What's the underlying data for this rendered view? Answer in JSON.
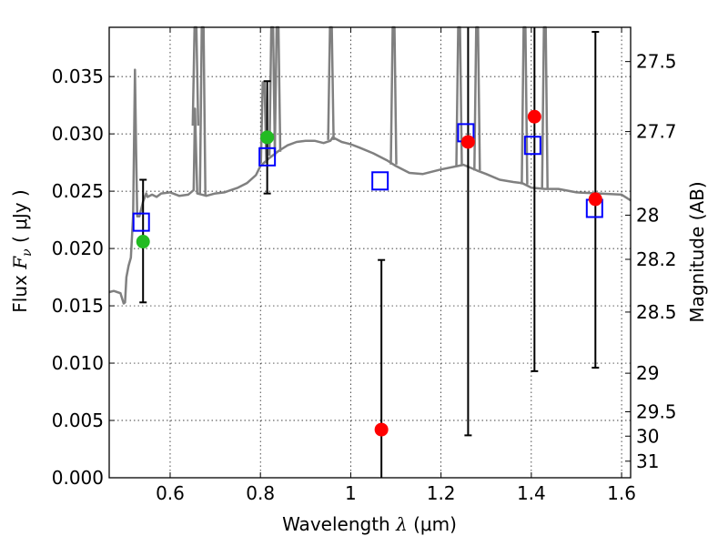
{
  "chart_data": {
    "type": "scatter",
    "xlabel": {
      "prefix": "Wavelength  ",
      "symbol": "λ",
      "unit": " (μm)"
    },
    "ylabel": {
      "prefix": "Flux  ",
      "symbol": "F",
      "subscript": "ν",
      "unit": "  ( μJy )"
    },
    "ylabel_right": "Magnitude (AB)",
    "xlim": [
      0.465,
      1.62
    ],
    "ylim": [
      0.0,
      0.0393
    ],
    "grid": true,
    "x_ticks": [
      {
        "value": 0.6,
        "label": "0.6"
      },
      {
        "value": 0.8,
        "label": "0.8"
      },
      {
        "value": 1.0,
        "label": "1"
      },
      {
        "value": 1.2,
        "label": "1.2"
      },
      {
        "value": 1.4,
        "label": "1.4"
      },
      {
        "value": 1.6,
        "label": "1.6"
      }
    ],
    "y_ticks": [
      {
        "value": 0.0,
        "label": "0.000"
      },
      {
        "value": 0.005,
        "label": "0.005"
      },
      {
        "value": 0.01,
        "label": "0.010"
      },
      {
        "value": 0.015,
        "label": "0.015"
      },
      {
        "value": 0.02,
        "label": "0.020"
      },
      {
        "value": 0.025,
        "label": "0.025"
      },
      {
        "value": 0.03,
        "label": "0.030"
      },
      {
        "value": 0.035,
        "label": "0.035"
      }
    ],
    "right_ticks": [
      {
        "value": 27.5,
        "label": "27.5"
      },
      {
        "value": 27.7,
        "label": "27.7"
      },
      {
        "value": 28.0,
        "label": "28"
      },
      {
        "value": 28.2,
        "label": "28.2"
      },
      {
        "value": 28.5,
        "label": "28.5"
      },
      {
        "value": 29.0,
        "label": "29"
      },
      {
        "value": 29.5,
        "label": "29.5"
      },
      {
        "value": 30.0,
        "label": "30"
      },
      {
        "value": 31.0,
        "label": "31"
      }
    ],
    "model_spectrum": {
      "color": "#808080",
      "x": [
        0.465,
        0.475,
        0.49,
        0.497,
        0.5,
        0.503,
        0.508,
        0.513,
        0.518,
        0.522,
        0.5245,
        0.527,
        0.532,
        0.54,
        0.547,
        0.55,
        0.56,
        0.57,
        0.58,
        0.6,
        0.62,
        0.64,
        0.652,
        0.655,
        0.66,
        0.68,
        0.7,
        0.72,
        0.75,
        0.77,
        0.79,
        0.8,
        0.82,
        0.84,
        0.86,
        0.88,
        0.9,
        0.92,
        0.94,
        0.955,
        0.96,
        0.98,
        1.0,
        1.02,
        1.05,
        1.08,
        1.1,
        1.13,
        1.16,
        1.2,
        1.25,
        1.28,
        1.3,
        1.33,
        1.36,
        1.38,
        1.4,
        1.43,
        1.46,
        1.5,
        1.55,
        1.6,
        1.62
      ],
      "y": [
        0.0162,
        0.0163,
        0.0161,
        0.0152,
        0.0153,
        0.0175,
        0.0185,
        0.0192,
        0.0229,
        0.0356,
        0.029,
        0.0228,
        0.0228,
        0.0241,
        0.0248,
        0.0245,
        0.0247,
        0.0245,
        0.0248,
        0.0249,
        0.0246,
        0.0247,
        0.0251,
        0.0322,
        0.0248,
        0.0246,
        0.0248,
        0.0249,
        0.0253,
        0.0257,
        0.0264,
        0.0272,
        0.0279,
        0.0285,
        0.029,
        0.0293,
        0.0294,
        0.0294,
        0.0292,
        0.0294,
        0.0297,
        0.0293,
        0.0291,
        0.0288,
        0.0283,
        0.0277,
        0.0272,
        0.0266,
        0.0265,
        0.0269,
        0.0273,
        0.0268,
        0.0265,
        0.026,
        0.0258,
        0.0257,
        0.0253,
        0.0252,
        0.0252,
        0.0249,
        0.0248,
        0.0247,
        0.0242
      ],
      "emission_spikes": [
        {
          "x": 0.656,
          "peak": 0.0393
        },
        {
          "x": 0.672,
          "peak": 0.0393
        },
        {
          "x": 0.807,
          "peak": 0.0345
        },
        {
          "x": 0.826,
          "peak": 0.0393
        },
        {
          "x": 0.838,
          "peak": 0.0393
        },
        {
          "x": 0.956,
          "peak": 0.0393
        },
        {
          "x": 1.095,
          "peak": 0.0393
        },
        {
          "x": 1.24,
          "peak": 0.0393
        },
        {
          "x": 1.28,
          "peak": 0.0393
        },
        {
          "x": 1.385,
          "peak": 0.0393
        },
        {
          "x": 1.43,
          "peak": 0.0393
        }
      ]
    },
    "model_photometry": {
      "marker": "open-square",
      "color": "#0000ff",
      "x": [
        0.536,
        0.815,
        1.065,
        1.255,
        1.403,
        1.54
      ],
      "y": [
        0.0223,
        0.028,
        0.0259,
        0.0301,
        0.029,
        0.0235
      ]
    },
    "detections": {
      "marker": "filled-circle",
      "color": "#22bb22",
      "x": [
        0.54,
        0.815
      ],
      "y": [
        0.0206,
        0.0297
      ],
      "y_low": [
        0.0153,
        0.0248
      ],
      "y_high": [
        0.026,
        0.0346
      ]
    },
    "non_detections": {
      "marker": "filled-circle",
      "color": "#ff0000",
      "x": [
        1.068,
        1.26,
        1.407,
        1.542
      ],
      "y": [
        0.0042,
        0.0293,
        0.0315,
        0.0243
      ],
      "y_low": [
        0.0,
        0.0037,
        0.0093,
        0.0096
      ],
      "y_high": [
        0.019,
        0.0393,
        0.0393,
        0.0389
      ]
    },
    "errorbar_color": "#000000"
  }
}
